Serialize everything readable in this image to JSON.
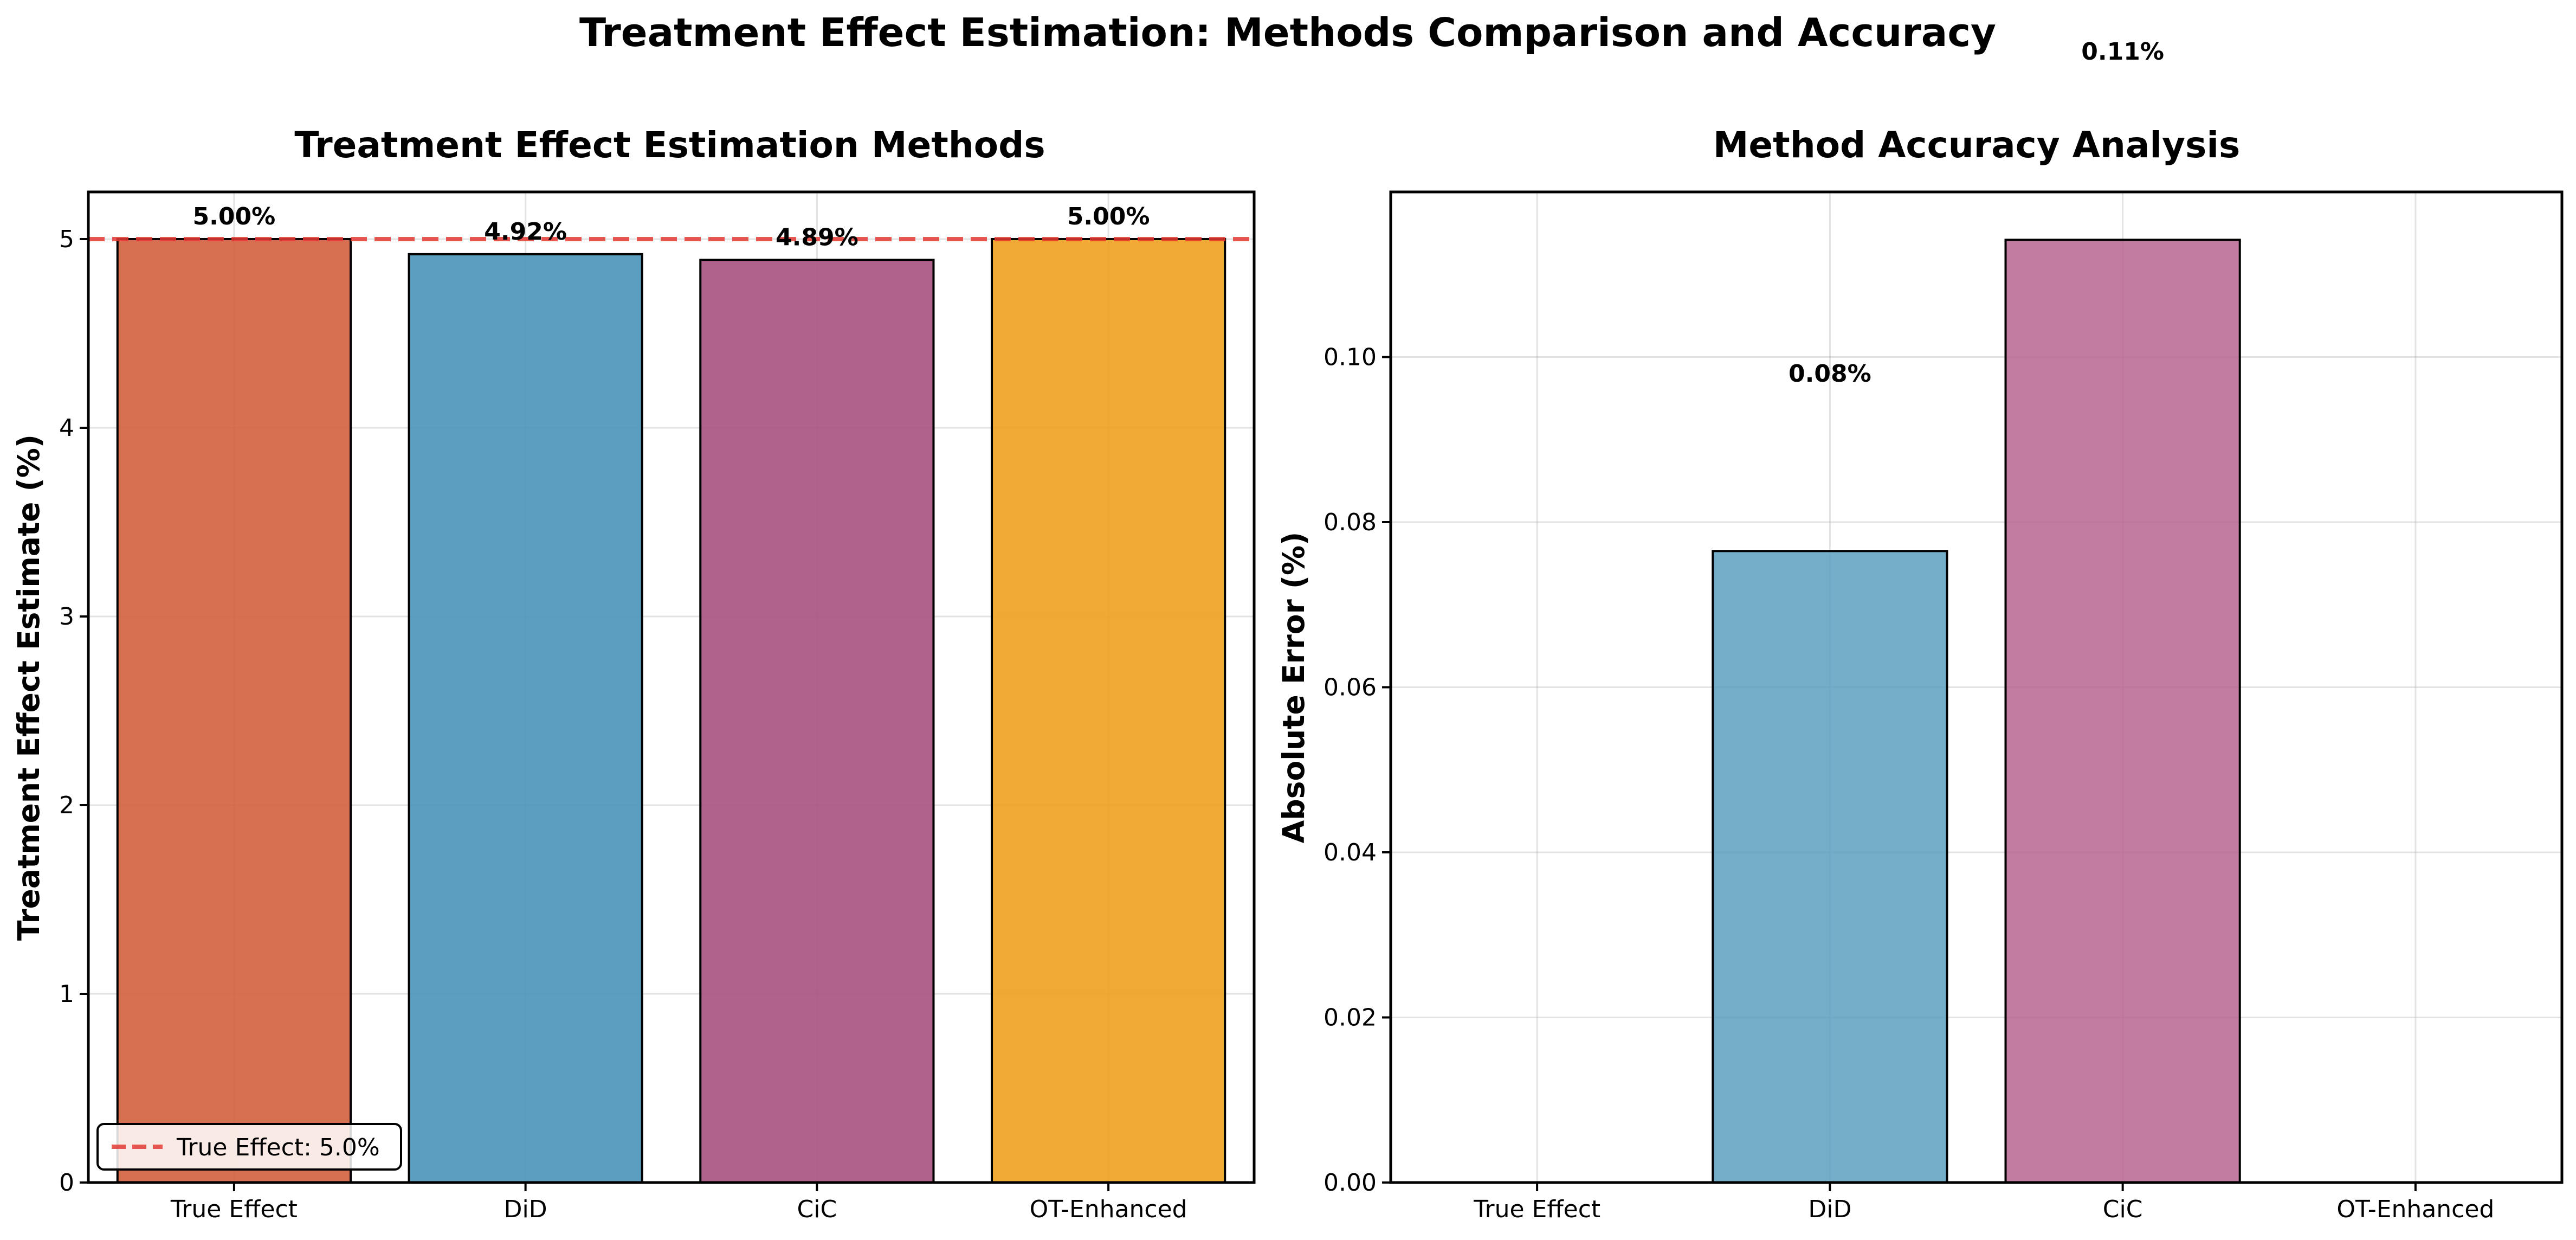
{
  "figure": {
    "suptitle": "Treatment Effect Estimation: Methods Comparison and Accuracy"
  },
  "chart_data": [
    {
      "type": "bar",
      "title": "Treatment Effect Estimation Methods",
      "xlabel": "",
      "ylabel": "Treatment Effect Estimate (%)",
      "categories": [
        "True Effect",
        "DiD",
        "CiC",
        "OT-Enhanced"
      ],
      "values": [
        5.0,
        4.92,
        4.89,
        5.0
      ],
      "value_labels": [
        "5.00%",
        "4.92%",
        "4.89%",
        "5.00%"
      ],
      "colors": [
        "#d1603d",
        "#4a93b8",
        "#a8517f",
        "#f0a020"
      ],
      "ylim": [
        0,
        5.25
      ],
      "yticks": [
        0,
        1,
        2,
        3,
        4,
        5
      ],
      "ytick_labels": [
        "0",
        "1",
        "2",
        "3",
        "4",
        "5"
      ],
      "reference_line": {
        "y": 5.0,
        "color": "#e53935",
        "style": "dashed",
        "label": "True Effect: 5.0%"
      },
      "legend": {
        "placement": "lower-left"
      },
      "grid": true
    },
    {
      "type": "bar",
      "title": "Method Accuracy Analysis",
      "xlabel": "",
      "ylabel": "Absolute Error (%)",
      "categories": [
        "True Effect",
        "DiD",
        "CiC",
        "OT-Enhanced"
      ],
      "values": [
        0.0,
        0.0765,
        0.1142,
        0.0
      ],
      "value_labels": [
        "",
        "0.08%",
        "0.11%",
        ""
      ],
      "value_label_y": [
        null,
        0.098,
        0.137,
        null
      ],
      "colors": [
        "#d1603d",
        "#5aa0c0",
        "#b86590",
        "#f0a020"
      ],
      "ylim": [
        0,
        0.12
      ],
      "yticks": [
        0,
        0.02,
        0.04,
        0.06,
        0.08,
        0.1
      ],
      "ytick_labels": [
        "0.00",
        "0.02",
        "0.04",
        "0.06",
        "0.08",
        "0.10"
      ],
      "grid": true
    }
  ]
}
